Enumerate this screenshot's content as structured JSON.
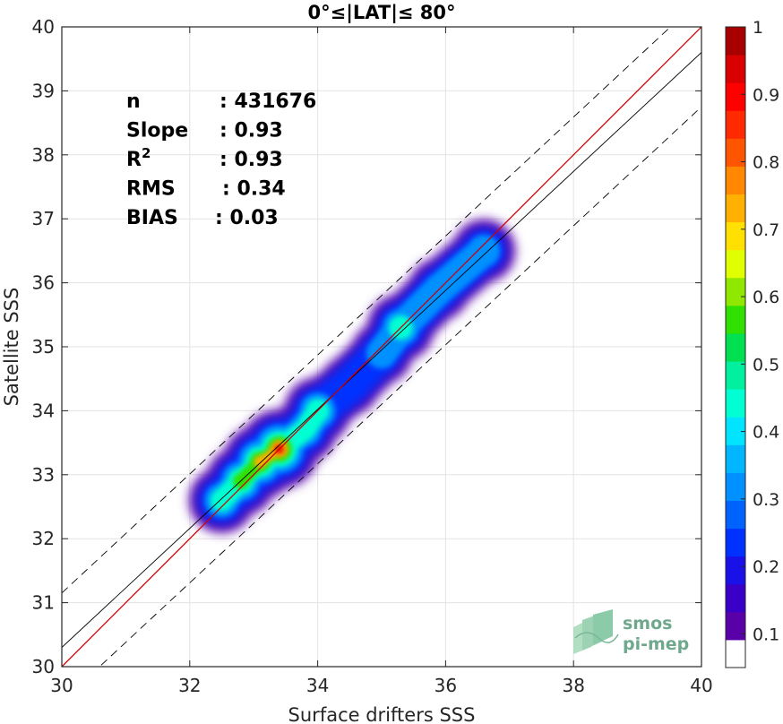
{
  "title": "0°≤|LAT|≤ 80°",
  "chart_data": {
    "type": "heatmap",
    "title": "0°≤|LAT|≤ 80°",
    "xlabel": "Surface drifters SSS",
    "ylabel": "Satellite SSS",
    "xlim": [
      30,
      40
    ],
    "ylim": [
      30,
      40
    ],
    "x_ticks": [
      "30",
      "32",
      "34",
      "36",
      "38",
      "40"
    ],
    "y_ticks": [
      "30",
      "31",
      "32",
      "33",
      "34",
      "35",
      "36",
      "37",
      "38",
      "39",
      "40"
    ],
    "grid": true,
    "stats": [
      {
        "label": "n",
        "value": ": 431676"
      },
      {
        "label": "Slope",
        "value": ": 0.93"
      },
      {
        "label": "R",
        "sup": "2",
        "value": ": 0.93"
      },
      {
        "label": "RMS",
        "value": ": 0.34"
      },
      {
        "label": "BIAS",
        "value": ": 0.03"
      }
    ],
    "lines": [
      {
        "role": "identity",
        "color": "#cc0000",
        "style": "solid",
        "intercept": 0,
        "slope": 1
      },
      {
        "role": "regression",
        "color": "#000000",
        "style": "solid",
        "slope": 0.93
      },
      {
        "role": "upper bound",
        "color": "#000000",
        "style": "dashed"
      },
      {
        "role": "lower bound",
        "color": "#000000",
        "style": "dashed"
      }
    ],
    "density_ridge": [
      {
        "x": 32.5,
        "y": 32.6,
        "level": 0.45
      },
      {
        "x": 32.8,
        "y": 32.9,
        "level": 0.62
      },
      {
        "x": 33.1,
        "y": 33.2,
        "level": 0.8
      },
      {
        "x": 33.4,
        "y": 33.4,
        "level": 1.0
      },
      {
        "x": 33.8,
        "y": 33.7,
        "level": 0.4
      },
      {
        "x": 34.0,
        "y": 34.0,
        "level": 0.5
      },
      {
        "x": 34.5,
        "y": 34.4,
        "level": 0.22
      },
      {
        "x": 35.0,
        "y": 34.9,
        "level": 0.3
      },
      {
        "x": 35.3,
        "y": 35.3,
        "level": 0.52
      },
      {
        "x": 35.9,
        "y": 35.9,
        "level": 0.3
      },
      {
        "x": 36.6,
        "y": 36.5,
        "level": 0.35
      }
    ],
    "colorbar": {
      "min": 0.05,
      "max": 1.0,
      "ticks": [
        "0.1",
        "0.2",
        "0.3",
        "0.4",
        "0.5",
        "0.6",
        "0.7",
        "0.8",
        "0.9",
        "1"
      ],
      "colors": [
        "#ffffff",
        "#5a00a8",
        "#3a00c8",
        "#1a10e8",
        "#0032ff",
        "#0062ff",
        "#0090ff",
        "#00b6ff",
        "#00e4ff",
        "#00ffd2",
        "#00f0a0",
        "#00e050",
        "#30e000",
        "#90e800",
        "#e0ff00",
        "#ffe000",
        "#ffb000",
        "#ff8800",
        "#ff5500",
        "#ff2a00",
        "#ff0000",
        "#d80000",
        "#a80000"
      ]
    }
  },
  "logo": {
    "line1": "smos",
    "line2": "pi-mep"
  }
}
